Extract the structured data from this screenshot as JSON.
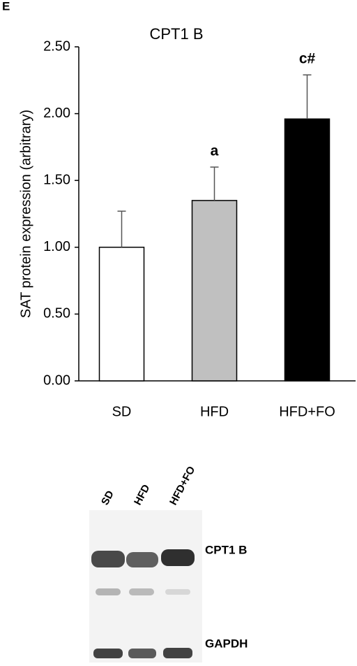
{
  "chart_data": {
    "type": "bar",
    "panel_label": "E",
    "title": "CPT1 B",
    "y_label": "SAT protein expression (arbitrary)",
    "categories": [
      "SD",
      "HFD",
      "HFD+FO"
    ],
    "values": [
      1.0,
      1.35,
      1.96
    ],
    "errors": [
      0.27,
      0.25,
      0.33
    ],
    "colors": [
      "#ffffff",
      "#c0c0c0",
      "#000000"
    ],
    "annotations": [
      null,
      "a",
      "c#"
    ],
    "ylim": [
      0,
      2.5
    ],
    "yticks": [
      {
        "value": 0,
        "label": "0.00"
      },
      {
        "value": 0.5,
        "label": "0.50"
      },
      {
        "value": 1,
        "label": "1.00"
      },
      {
        "value": 1.5,
        "label": "1.50"
      },
      {
        "value": 2,
        "label": "2.00"
      },
      {
        "value": 2.5,
        "label": "2.50"
      }
    ],
    "grid": false
  },
  "blot": {
    "lanes": [
      "SD",
      "HFD",
      "HFD+FO"
    ],
    "bands": [
      "CPT1 B",
      "GAPDH"
    ]
  }
}
